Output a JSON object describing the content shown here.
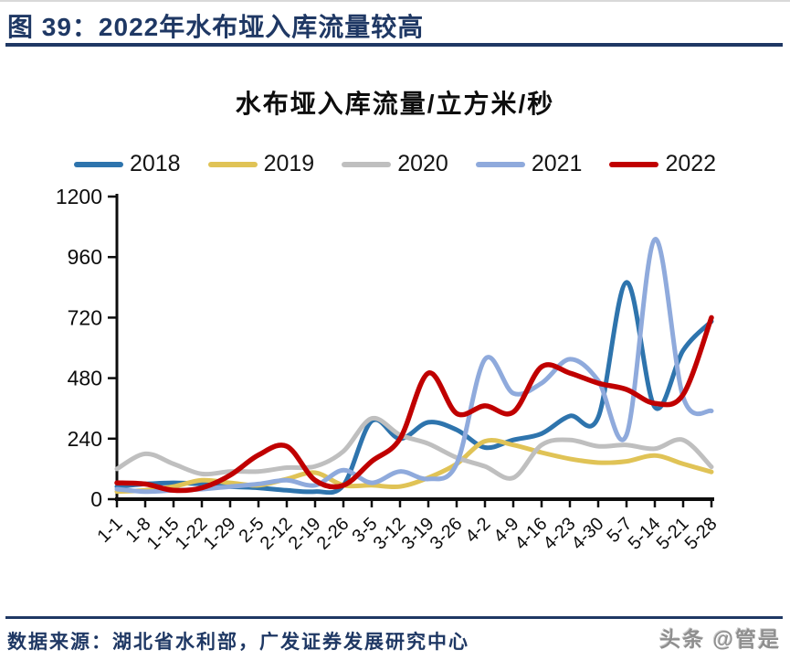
{
  "header": {
    "figure_title": "图 39：2022年水布垭入库流量较高"
  },
  "chart": {
    "title": "水布垭入库流量/立方米/秒"
  },
  "chart_data": {
    "type": "line",
    "title": "水布垭入库流量/立方米/秒",
    "smooth": true,
    "grid": false,
    "legend_position": "top",
    "xlabel": "",
    "ylabel": "",
    "ylim": [
      0,
      1200
    ],
    "yticks": [
      0,
      240,
      480,
      720,
      960,
      1200
    ],
    "categories": [
      "1-1",
      "1-8",
      "1-15",
      "1-22",
      "1-29",
      "2-5",
      "2-12",
      "2-19",
      "2-26",
      "3-5",
      "3-12",
      "3-19",
      "3-26",
      "4-2",
      "4-9",
      "4-16",
      "4-23",
      "4-30",
      "5-7",
      "5-14",
      "5-21",
      "5-28"
    ],
    "series": [
      {
        "name": "2018",
        "color": "#2e74ad",
        "values": [
          50,
          60,
          65,
          60,
          50,
          45,
          35,
          30,
          55,
          310,
          240,
          305,
          275,
          205,
          235,
          260,
          330,
          325,
          860,
          365,
          590,
          705
        ]
      },
      {
        "name": "2019",
        "color": "#e0c356",
        "values": [
          30,
          35,
          50,
          75,
          65,
          55,
          80,
          105,
          55,
          55,
          50,
          85,
          140,
          230,
          215,
          185,
          160,
          145,
          150,
          173,
          140,
          108
        ]
      },
      {
        "name": "2020",
        "color": "#bfbfbf",
        "values": [
          120,
          180,
          140,
          100,
          110,
          110,
          125,
          130,
          190,
          320,
          255,
          220,
          165,
          130,
          85,
          215,
          235,
          210,
          215,
          200,
          235,
          128
        ]
      },
      {
        "name": "2021",
        "color": "#8faadc",
        "values": [
          40,
          30,
          35,
          40,
          50,
          60,
          75,
          55,
          115,
          65,
          110,
          80,
          140,
          555,
          420,
          460,
          555,
          470,
          255,
          1030,
          405,
          350
        ]
      },
      {
        "name": "2022",
        "color": "#c00000",
        "values": [
          65,
          60,
          35,
          45,
          95,
          175,
          210,
          75,
          55,
          150,
          240,
          500,
          340,
          370,
          345,
          525,
          500,
          460,
          435,
          380,
          415,
          720
        ]
      }
    ]
  },
  "footer": {
    "source": "数据来源：湖北省水利部，广发证券发展研究中心",
    "watermark": "头条 @管是"
  },
  "colors": {
    "accent_navy": "#1f3864",
    "axis": "#0d0d0d"
  }
}
